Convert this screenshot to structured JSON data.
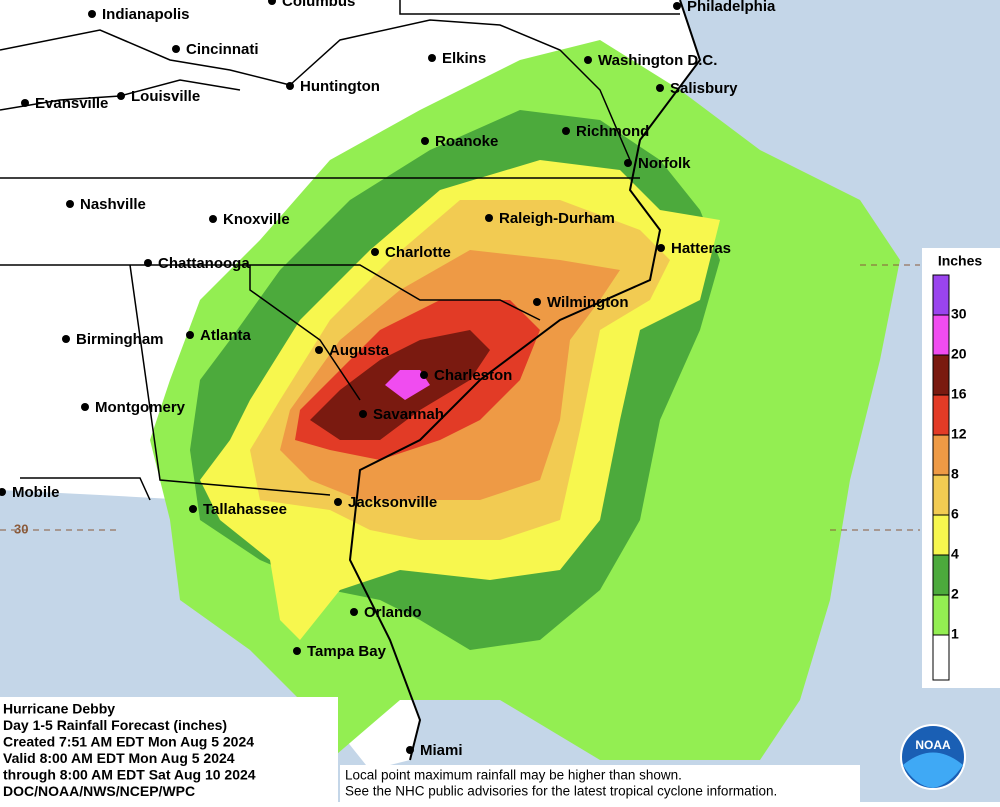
{
  "cities": [
    "Indianapolis",
    "Columbus",
    "Philadelphia",
    "Cincinnati",
    "Elkins",
    "Washington D.C.",
    "Salisbury",
    "Huntington",
    "Evansville",
    "Louisville",
    "Roanoke",
    "Richmond",
    "Norfolk",
    "Nashville",
    "Knoxville",
    "Raleigh-Durham",
    "Charlotte",
    "Hatteras",
    "Chattanooga",
    "Wilmington",
    "Birmingham",
    "Atlanta",
    "Augusta",
    "Charleston",
    "Montgomery",
    "Savannah",
    "Mobile",
    "Tallahassee",
    "Jacksonville",
    "Orlando",
    "Tampa Bay",
    "Miami"
  ],
  "latitude_label": "30",
  "legend": {
    "title": "Inches",
    "labels": [
      "30",
      "20",
      "16",
      "12",
      "8",
      "6",
      "4",
      "2",
      "1"
    ],
    "colors": [
      "#9a44ee",
      "#f04cf0",
      "#7a1a10",
      "#e23b26",
      "#ee9a45",
      "#f2cb52",
      "#f7f74e",
      "#4caa3c",
      "#93ee52",
      "#ffffff"
    ]
  },
  "info": [
    "Hurricane Debby",
    "Day 1-5 Rainfall Forecast (inches)",
    "Created 7:51 AM EDT Mon Aug 5 2024",
    "Valid 8:00 AM EDT Mon Aug 5 2024",
    "through 8:00 AM EDT Sat Aug 10 2024",
    "DOC/NOAA/NWS/NCEP/WPC"
  ],
  "disclaimer": [
    "Local point maximum rainfall may be higher than shown.",
    "See the NHC public advisories for the latest tropical cyclone information."
  ],
  "logo": "NOAA"
}
